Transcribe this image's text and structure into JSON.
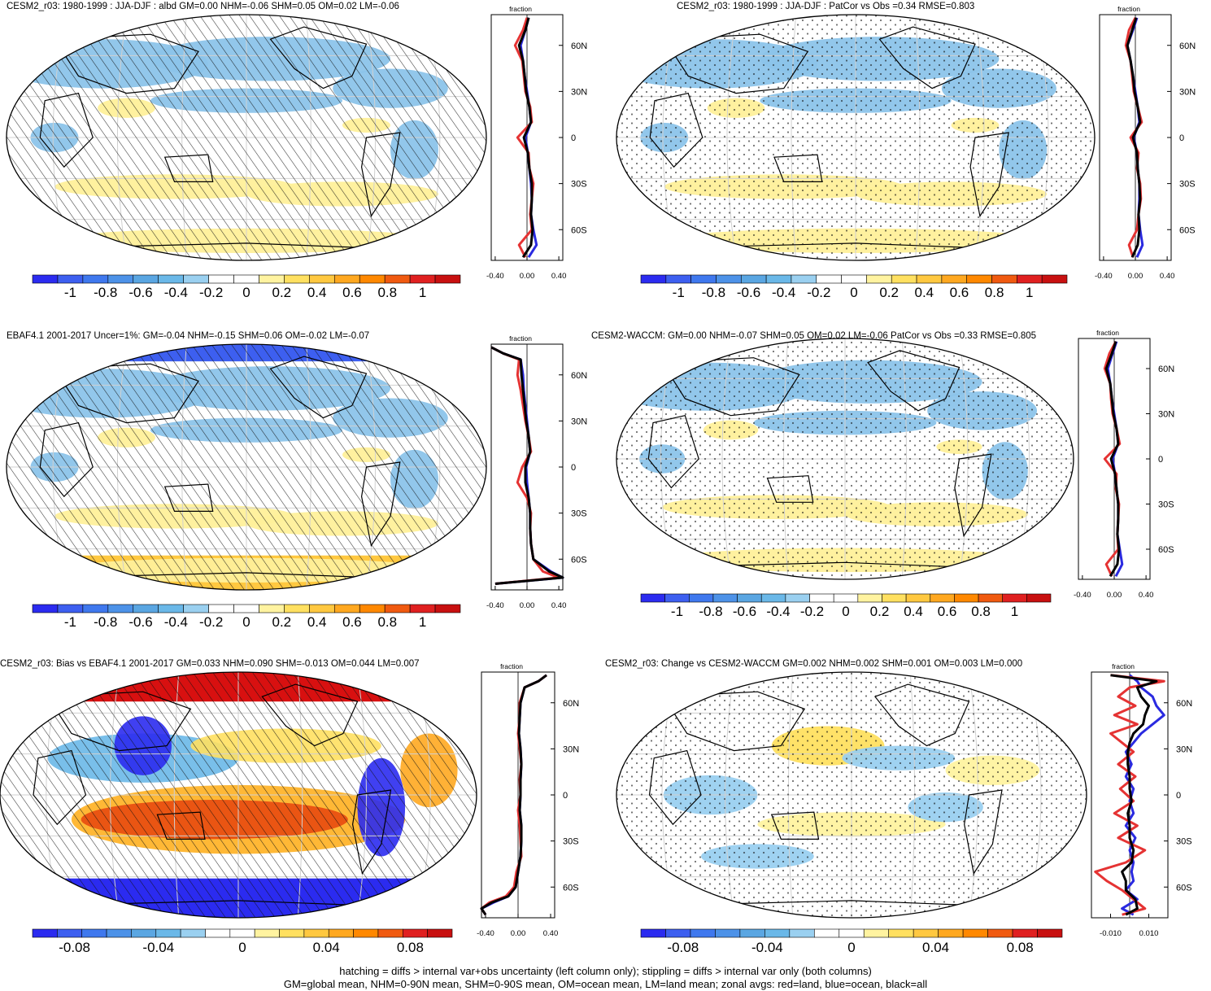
{
  "colors": {
    "land": "#e53333",
    "ocean": "#2a2ae0",
    "all": "#000000",
    "palette": [
      "#2b2bf0",
      "#3d5ff0",
      "#3f78ee",
      "#4d92e8",
      "#5aa6e2",
      "#6ab8e8",
      "#9ad0f0",
      "#ffffff",
      "#ffffff",
      "#fff3a0",
      "#ffe060",
      "#ffc840",
      "#ffa820",
      "#ff8800",
      "#f05a10",
      "#e02020",
      "#c81010"
    ]
  },
  "footer": {
    "line1": "hatching = diffs > internal var+obs uncertainty (left column only); stippling = diffs > internal var only (both columns)",
    "line2": "GM=global mean, NHM=0-90N mean, SHM=0-90S mean, OM=ocean mean, LM=land mean; zonal avgs: red=land, blue=ocean, black=all"
  },
  "chart_data": [
    {
      "type": "line",
      "id": "p1",
      "title": "CESM2_r03: 1980-1999 : JJA-DJF : albd GM=0.00 NHM=-0.06 SHM=0.05 OM=0.02 LM=-0.06",
      "xlabel": "fraction",
      "xticks": [
        "-0.40",
        "0.00",
        "0.40"
      ],
      "xlim": [
        -0.45,
        0.45
      ],
      "yticks": [
        "60N",
        "30N",
        "0",
        "30S",
        "60S"
      ],
      "ylim": [
        -80,
        80
      ],
      "colorbar_labels": [
        "-1",
        "-0.8",
        "-0.6",
        "-0.4",
        "-0.2",
        "0",
        "0.2",
        "0.4",
        "0.6",
        "0.8",
        "1"
      ],
      "overlay": "hatching",
      "series": [
        {
          "name": "land",
          "lat": [
            78,
            70,
            60,
            50,
            40,
            30,
            20,
            10,
            0,
            -10,
            -20,
            -30,
            -40,
            -50,
            -60,
            -70,
            -78
          ],
          "values": [
            0.0,
            -0.05,
            -0.15,
            -0.06,
            -0.04,
            -0.02,
            0.04,
            0.06,
            -0.12,
            0.02,
            0.03,
            0.08,
            0.06,
            0.04,
            0.06,
            -0.1,
            -0.02
          ]
        },
        {
          "name": "ocean",
          "lat": [
            78,
            70,
            60,
            50,
            40,
            30,
            20,
            10,
            0,
            -10,
            -20,
            -30,
            -40,
            -50,
            -60,
            -70,
            -78
          ],
          "values": [
            0.02,
            -0.02,
            -0.08,
            -0.05,
            -0.03,
            0.0,
            0.03,
            0.05,
            -0.02,
            0.01,
            0.03,
            0.05,
            0.06,
            0.05,
            0.08,
            0.12,
            0.02
          ]
        },
        {
          "name": "all",
          "lat": [
            78,
            70,
            60,
            50,
            40,
            30,
            20,
            10,
            0,
            -10,
            -20,
            -30,
            -40,
            -50,
            -60,
            -70,
            -78
          ],
          "values": [
            0.02,
            -0.02,
            -0.1,
            -0.05,
            -0.03,
            -0.01,
            0.03,
            0.05,
            -0.04,
            0.01,
            0.03,
            0.06,
            0.06,
            0.05,
            0.07,
            0.05,
            -0.05
          ]
        }
      ]
    },
    {
      "type": "line",
      "id": "p2",
      "title": "CESM2_r03: 1980-1999 : JJA-DJF : PatCor vs Obs =0.34 RMSE=0.803",
      "xlabel": "fraction",
      "xticks": [
        "-0.40",
        "0.00",
        "0.40"
      ],
      "xlim": [
        -0.45,
        0.45
      ],
      "yticks": [
        "60N",
        "30N",
        "0",
        "30S",
        "60S"
      ],
      "ylim": [
        -80,
        80
      ],
      "colorbar_labels": [
        "-1",
        "-0.8",
        "-0.6",
        "-0.4",
        "-0.2",
        "0",
        "0.2",
        "0.4",
        "0.6",
        "0.8",
        "1"
      ],
      "overlay": "stipple",
      "series": [
        {
          "name": "land",
          "lat": [
            78,
            70,
            60,
            50,
            40,
            30,
            20,
            10,
            0,
            -10,
            -20,
            -30,
            -40,
            -50,
            -60,
            -70,
            -78
          ],
          "values": [
            0.0,
            -0.08,
            -0.12,
            -0.06,
            -0.04,
            -0.02,
            0.03,
            0.08,
            -0.06,
            0.04,
            0.02,
            0.06,
            0.07,
            0.04,
            0.02,
            -0.08,
            -0.03
          ]
        },
        {
          "name": "ocean",
          "lat": [
            78,
            70,
            60,
            50,
            40,
            30,
            20,
            10,
            0,
            -10,
            -20,
            -30,
            -40,
            -50,
            -60,
            -70,
            -78
          ],
          "values": [
            0.02,
            -0.03,
            -0.1,
            -0.06,
            -0.03,
            0.0,
            0.03,
            0.05,
            -0.02,
            0.02,
            0.03,
            0.05,
            0.05,
            0.04,
            0.06,
            0.09,
            0.02
          ]
        },
        {
          "name": "all",
          "lat": [
            78,
            70,
            60,
            50,
            40,
            30,
            20,
            10,
            0,
            -10,
            -20,
            -30,
            -40,
            -50,
            -60,
            -70,
            -78
          ],
          "values": [
            0.01,
            -0.04,
            -0.1,
            -0.06,
            -0.03,
            -0.01,
            0.03,
            0.06,
            -0.03,
            0.02,
            0.03,
            0.05,
            0.06,
            0.04,
            0.05,
            0.03,
            -0.04
          ]
        }
      ]
    },
    {
      "type": "line",
      "id": "p3",
      "title": "EBAF4.1 2001-2017 Uncer=1%: GM=-0.04 NHM=-0.15 SHM=0.06 OM=-0.02 LM=-0.07",
      "xlabel": "fraction",
      "xticks": [
        "-0.40",
        "0.00",
        "0.40"
      ],
      "xlim": [
        -0.45,
        0.45
      ],
      "yticks": [
        "60N",
        "30N",
        "0",
        "30S",
        "60S"
      ],
      "ylim": [
        -80,
        80
      ],
      "colorbar_labels": [
        "-1",
        "-0.8",
        "-0.6",
        "-0.4",
        "-0.2",
        "0",
        "0.2",
        "0.4",
        "0.6",
        "0.8",
        "1"
      ],
      "overlay": "hatching",
      "series": [
        {
          "name": "land",
          "lat": [
            78,
            74,
            70,
            60,
            50,
            40,
            30,
            20,
            10,
            0,
            -10,
            -20,
            -30,
            -40,
            -50,
            -60,
            -68,
            -72,
            -76
          ],
          "values": [
            -0.45,
            -0.3,
            -0.1,
            -0.12,
            -0.08,
            -0.05,
            -0.02,
            0.02,
            0.05,
            -0.06,
            -0.12,
            0.0,
            0.05,
            0.04,
            0.05,
            0.08,
            0.2,
            0.4,
            -0.4
          ]
        },
        {
          "name": "ocean",
          "lat": [
            78,
            74,
            70,
            60,
            50,
            40,
            30,
            20,
            10,
            0,
            -10,
            -20,
            -30,
            -40,
            -50,
            -60,
            -68,
            -72,
            -76
          ],
          "values": [
            -0.45,
            -0.3,
            -0.08,
            -0.05,
            -0.04,
            -0.02,
            0.0,
            0.02,
            0.04,
            -0.01,
            0.0,
            0.02,
            0.04,
            0.04,
            0.05,
            0.08,
            0.3,
            0.45,
            -0.4
          ]
        },
        {
          "name": "all",
          "lat": [
            78,
            74,
            70,
            60,
            50,
            40,
            30,
            20,
            10,
            0,
            -10,
            -20,
            -30,
            -40,
            -50,
            -60,
            -68,
            -72,
            -76
          ],
          "values": [
            -0.45,
            -0.3,
            -0.08,
            -0.07,
            -0.05,
            -0.03,
            -0.01,
            0.02,
            0.04,
            -0.02,
            -0.02,
            0.02,
            0.04,
            0.04,
            0.05,
            0.08,
            0.28,
            0.45,
            -0.4
          ]
        }
      ]
    },
    {
      "type": "line",
      "id": "p4",
      "title": "CESM2-WACCM: GM=0.00 NHM=-0.07 SHM=0.05 OM=0.02 LM=-0.06 PatCor vs Obs =0.33 RMSE=0.805",
      "xlabel": "fraction",
      "xticks": [
        "-0.40",
        "0.00",
        "0.40"
      ],
      "xlim": [
        -0.45,
        0.45
      ],
      "yticks": [
        "60N",
        "30N",
        "0",
        "30S",
        "60S"
      ],
      "ylim": [
        -80,
        80
      ],
      "colorbar_labels": [
        "-1",
        "-0.8",
        "-0.6",
        "-0.4",
        "-0.2",
        "0",
        "0.2",
        "0.4",
        "0.6",
        "0.8",
        "1"
      ],
      "overlay": "stipple",
      "series": [
        {
          "name": "land",
          "lat": [
            78,
            70,
            60,
            50,
            40,
            30,
            20,
            10,
            0,
            -10,
            -20,
            -30,
            -40,
            -50,
            -60,
            -70,
            -78
          ],
          "values": [
            0.02,
            -0.06,
            -0.12,
            -0.05,
            -0.04,
            -0.02,
            0.03,
            0.07,
            -0.12,
            0.03,
            0.02,
            0.06,
            0.05,
            0.04,
            0.05,
            -0.1,
            -0.03
          ]
        },
        {
          "name": "ocean",
          "lat": [
            78,
            70,
            60,
            50,
            40,
            30,
            20,
            10,
            0,
            -10,
            -20,
            -30,
            -40,
            -50,
            -60,
            -70,
            -78
          ],
          "values": [
            0.03,
            -0.02,
            -0.08,
            -0.05,
            -0.03,
            0.0,
            0.03,
            0.05,
            -0.02,
            0.01,
            0.03,
            0.05,
            0.05,
            0.04,
            0.07,
            0.1,
            0.02
          ]
        },
        {
          "name": "all",
          "lat": [
            78,
            70,
            60,
            50,
            40,
            30,
            20,
            10,
            0,
            -10,
            -20,
            -30,
            -40,
            -50,
            -60,
            -70,
            -78
          ],
          "values": [
            0.02,
            -0.03,
            -0.1,
            -0.05,
            -0.03,
            -0.01,
            0.03,
            0.05,
            -0.04,
            0.01,
            0.03,
            0.05,
            0.05,
            0.04,
            0.06,
            0.04,
            -0.05
          ]
        }
      ]
    },
    {
      "type": "line",
      "id": "p5",
      "title": "CESM2_r03: Bias vs EBAF4.1 2001-2017 GM=0.033 NHM=0.090 SHM=-0.013 OM=0.044 LM=0.007",
      "xlabel": "fraction",
      "xticks": [
        "-0.40",
        "0.00",
        "0.40"
      ],
      "xlim": [
        -0.45,
        0.45
      ],
      "yticks": [
        "60N",
        "30N",
        "0",
        "30S",
        "60S"
      ],
      "ylim": [
        -80,
        80
      ],
      "colorbar_labels": [
        "-0.08",
        "-0.04",
        "0",
        "0.04",
        "0.08"
      ],
      "overlay": "hatching",
      "series": [
        {
          "name": "land",
          "lat": [
            78,
            74,
            70,
            60,
            50,
            40,
            30,
            20,
            10,
            0,
            -10,
            -20,
            -30,
            -40,
            -50,
            -60,
            -66,
            -70,
            -74,
            -78
          ],
          "values": [
            0.35,
            0.25,
            0.08,
            0.02,
            0.02,
            0.0,
            0.02,
            0.04,
            0.02,
            0.03,
            0.0,
            0.02,
            0.03,
            0.04,
            -0.02,
            -0.05,
            -0.15,
            -0.35,
            -0.45,
            -0.4
          ]
        },
        {
          "name": "ocean",
          "lat": [
            78,
            74,
            70,
            60,
            50,
            40,
            30,
            20,
            10,
            0,
            -10,
            -20,
            -30,
            -40,
            -50,
            -60,
            -66,
            -70,
            -74,
            -78
          ],
          "values": [
            0.35,
            0.25,
            0.08,
            0.03,
            0.02,
            0.01,
            0.03,
            0.04,
            0.03,
            0.03,
            0.02,
            0.04,
            0.04,
            0.03,
            0.0,
            -0.03,
            -0.12,
            -0.3,
            -0.45,
            -0.4
          ]
        },
        {
          "name": "all",
          "lat": [
            78,
            74,
            70,
            60,
            50,
            40,
            30,
            20,
            10,
            0,
            -10,
            -20,
            -30,
            -40,
            -50,
            -60,
            -66,
            -70,
            -74,
            -78
          ],
          "values": [
            0.35,
            0.25,
            0.08,
            0.03,
            0.02,
            0.01,
            0.03,
            0.04,
            0.03,
            0.03,
            0.02,
            0.04,
            0.04,
            0.03,
            0.0,
            -0.03,
            -0.12,
            -0.32,
            -0.45,
            -0.4
          ]
        }
      ]
    },
    {
      "type": "line",
      "id": "p6",
      "title": "CESM2_r03: Change vs CESM2-WACCM GM=0.002 NHM=0.002 SHM=0.001 OM=0.003 LM=0.000",
      "xlabel": "fraction",
      "xticks": [
        "-0.010",
        "0.010"
      ],
      "xlim": [
        -0.02,
        0.02
      ],
      "yticks": [
        "60N",
        "30N",
        "0",
        "30S",
        "60S"
      ],
      "ylim": [
        -80,
        80
      ],
      "colorbar_labels": [
        "-0.08",
        "-0.04",
        "0",
        "0.04",
        "0.08"
      ],
      "overlay": "stipple",
      "series": [
        {
          "name": "land",
          "lat": [
            78,
            74,
            70,
            64,
            58,
            52,
            46,
            40,
            34,
            28,
            20,
            12,
            4,
            -4,
            -12,
            -20,
            -28,
            -36,
            -44,
            -50,
            -56,
            -62,
            -68,
            -74,
            -78
          ],
          "values": [
            -0.01,
            0.018,
            0.0,
            -0.006,
            0.003,
            -0.008,
            0.004,
            -0.01,
            -0.004,
            0.002,
            -0.006,
            0.003,
            -0.005,
            0.002,
            -0.008,
            0.004,
            -0.006,
            0.008,
            -0.002,
            -0.018,
            -0.012,
            -0.004,
            0.002,
            0.008,
            -0.004
          ]
        },
        {
          "name": "ocean",
          "lat": [
            78,
            74,
            70,
            64,
            58,
            52,
            46,
            40,
            34,
            28,
            20,
            12,
            4,
            -4,
            -12,
            -20,
            -28,
            -36,
            -44,
            -50,
            -56,
            -62,
            -68,
            -74,
            -78
          ],
          "values": [
            0.0,
            0.004,
            0.006,
            0.012,
            0.014,
            0.018,
            0.012,
            0.006,
            0.002,
            -0.002,
            0.001,
            -0.002,
            0.002,
            0.0,
            0.002,
            -0.002,
            0.003,
            0.0,
            0.002,
            0.001,
            0.002,
            -0.002,
            0.004,
            -0.004,
            0.002
          ]
        },
        {
          "name": "all",
          "lat": [
            78,
            74,
            70,
            64,
            58,
            52,
            46,
            40,
            34,
            28,
            20,
            12,
            4,
            -4,
            -12,
            -20,
            -28,
            -36,
            -44,
            -50,
            -56,
            -62,
            -68,
            -74,
            -78
          ],
          "values": [
            -0.01,
            0.014,
            0.004,
            0.006,
            0.01,
            0.008,
            0.007,
            0.002,
            0.0,
            -0.001,
            -0.001,
            0.0,
            0.0,
            0.001,
            -0.001,
            0.0,
            0.0,
            0.002,
            0.001,
            -0.004,
            -0.002,
            -0.002,
            0.003,
            0.004,
            -0.002
          ]
        }
      ]
    }
  ]
}
